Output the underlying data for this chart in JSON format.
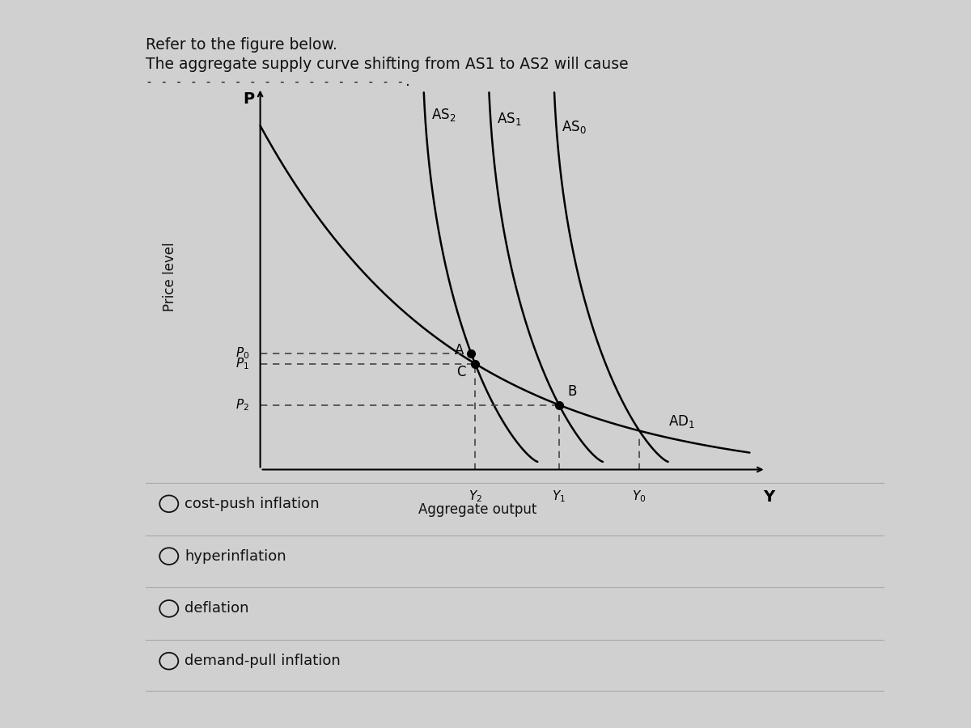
{
  "title_line1": "Refer to the figure below.",
  "title_line2": "The aggregate supply curve shifting from AS1 to AS2 will cause",
  "dashes_line": "- - - - - - - - - - - - - - - - - -.",
  "ylabel_rotated": "Price level",
  "xlabel": "Aggregate output",
  "y_axis_label": "P",
  "x_axis_label": "Y",
  "options": [
    "cost-push inflation",
    "hyperinflation",
    "deflation",
    "demand-pull inflation"
  ],
  "bg_color": "#d0d0d0",
  "box_bg": "#e2e2e2",
  "text_color": "#111111",
  "curve_color": "#111111"
}
